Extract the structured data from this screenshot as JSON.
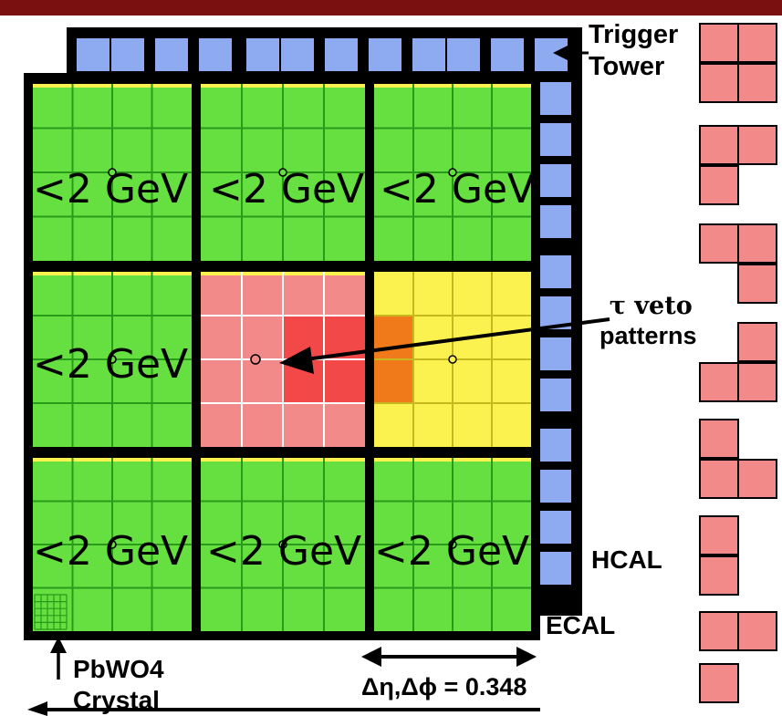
{
  "labels": {
    "trigger_tower": "Trigger\nTower",
    "tau_veto": "τ veto\npatterns",
    "hcal": "HCAL",
    "ecal": "ECAL",
    "crystal": "PbWO4\nCrystal",
    "dimension": "Δη,Δϕ = 0.348"
  },
  "energy_label": "<2 GeV",
  "colors": {
    "top_bar": "#7a1010",
    "hcal_blue": "#8eaaf0",
    "ecal_green": "#66e040",
    "grid_green": "#2a9a1a",
    "yellow": "#fbf250",
    "pink": "#f38a8a",
    "red": "#f24848",
    "orange": "#f07a1a",
    "pattern_pink": "#f28a8a"
  },
  "veto_patterns": [
    [
      [
        1,
        1
      ],
      [
        1,
        1
      ]
    ],
    [
      [
        1,
        1
      ],
      [
        1,
        0
      ]
    ],
    [
      [
        1,
        1
      ],
      [
        0,
        1
      ]
    ],
    [
      [
        0,
        1
      ],
      [
        1,
        1
      ]
    ],
    [
      [
        1,
        0
      ],
      [
        1,
        1
      ]
    ],
    [
      [
        1,
        0
      ],
      [
        1,
        0
      ]
    ],
    [
      [
        1,
        1
      ],
      [
        0,
        0
      ]
    ],
    [
      [
        1,
        0
      ],
      [
        0,
        0
      ]
    ]
  ]
}
